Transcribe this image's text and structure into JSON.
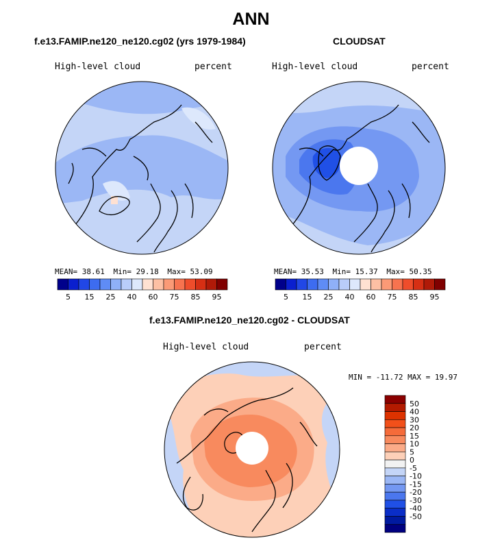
{
  "main_title": "ANN",
  "panels": [
    {
      "title": "f.e13.FAMIP.ne120_ne120.cg02 (yrs 1979-1984)",
      "variable": "High-level cloud",
      "units": "percent",
      "mean_label": "MEAN=",
      "mean": "38.61",
      "min_label": "Min=",
      "min": "29.18",
      "max_label": "Max=",
      "max": "53.09"
    },
    {
      "title": "CLOUDSAT",
      "variable": "High-level cloud",
      "units": "percent",
      "mean_label": "MEAN=",
      "mean": "35.53",
      "min_label": "Min=",
      "min": "15.37",
      "max_label": "Max=",
      "max": "50.35"
    },
    {
      "title": "f.e13.FAMIP.ne120_ne120.cg02 - CLOUDSAT",
      "variable": "High-level cloud",
      "units": "percent",
      "minmax": "MIN = -11.72 MAX =  19.97"
    }
  ],
  "abs_colorbar": {
    "colors": [
      "#00008b",
      "#0a1fcf",
      "#2147e6",
      "#3d6cf0",
      "#5f8cf5",
      "#8fb0f8",
      "#b9cdfa",
      "#dde8fc",
      "#ffe1d2",
      "#fdc0a4",
      "#fb9a76",
      "#f7734f",
      "#ef4d2b",
      "#d62f14",
      "#b01a08",
      "#800000"
    ],
    "tick_labels": [
      "5",
      "15",
      "25",
      "40",
      "60",
      "75",
      "85",
      "95"
    ]
  },
  "diff_colorbar": {
    "colors_top_to_bottom": [
      "#8b0000",
      "#b31a00",
      "#dd3200",
      "#f2501a",
      "#f56b3a",
      "#f88a5e",
      "#fbab88",
      "#fdd0b8",
      "#f2f2f2",
      "#c4d5f7",
      "#9bb7f5",
      "#7498f2",
      "#4b77ee",
      "#2050e6",
      "#0a2ec8",
      "#001aa0",
      "#000080"
    ],
    "tick_labels": [
      "50",
      "40",
      "30",
      "20",
      "15",
      "10",
      "5",
      "0",
      "-5",
      "-10",
      "-15",
      "-20",
      "-30",
      "-40",
      "-50"
    ]
  },
  "map_colors": {
    "model_base": "#c4d5f7",
    "model_mid": "#9bb7f5",
    "obs_base": "#9bb7f5",
    "obs_mid": "#7498f2",
    "obs_dark": "#4b77ee",
    "obs_darker": "#2050e6",
    "diff_light_red": "#fdd0b8",
    "diff_mid_red": "#fbab88",
    "diff_red": "#f88a5e",
    "diff_blue": "#c4d5f7"
  }
}
